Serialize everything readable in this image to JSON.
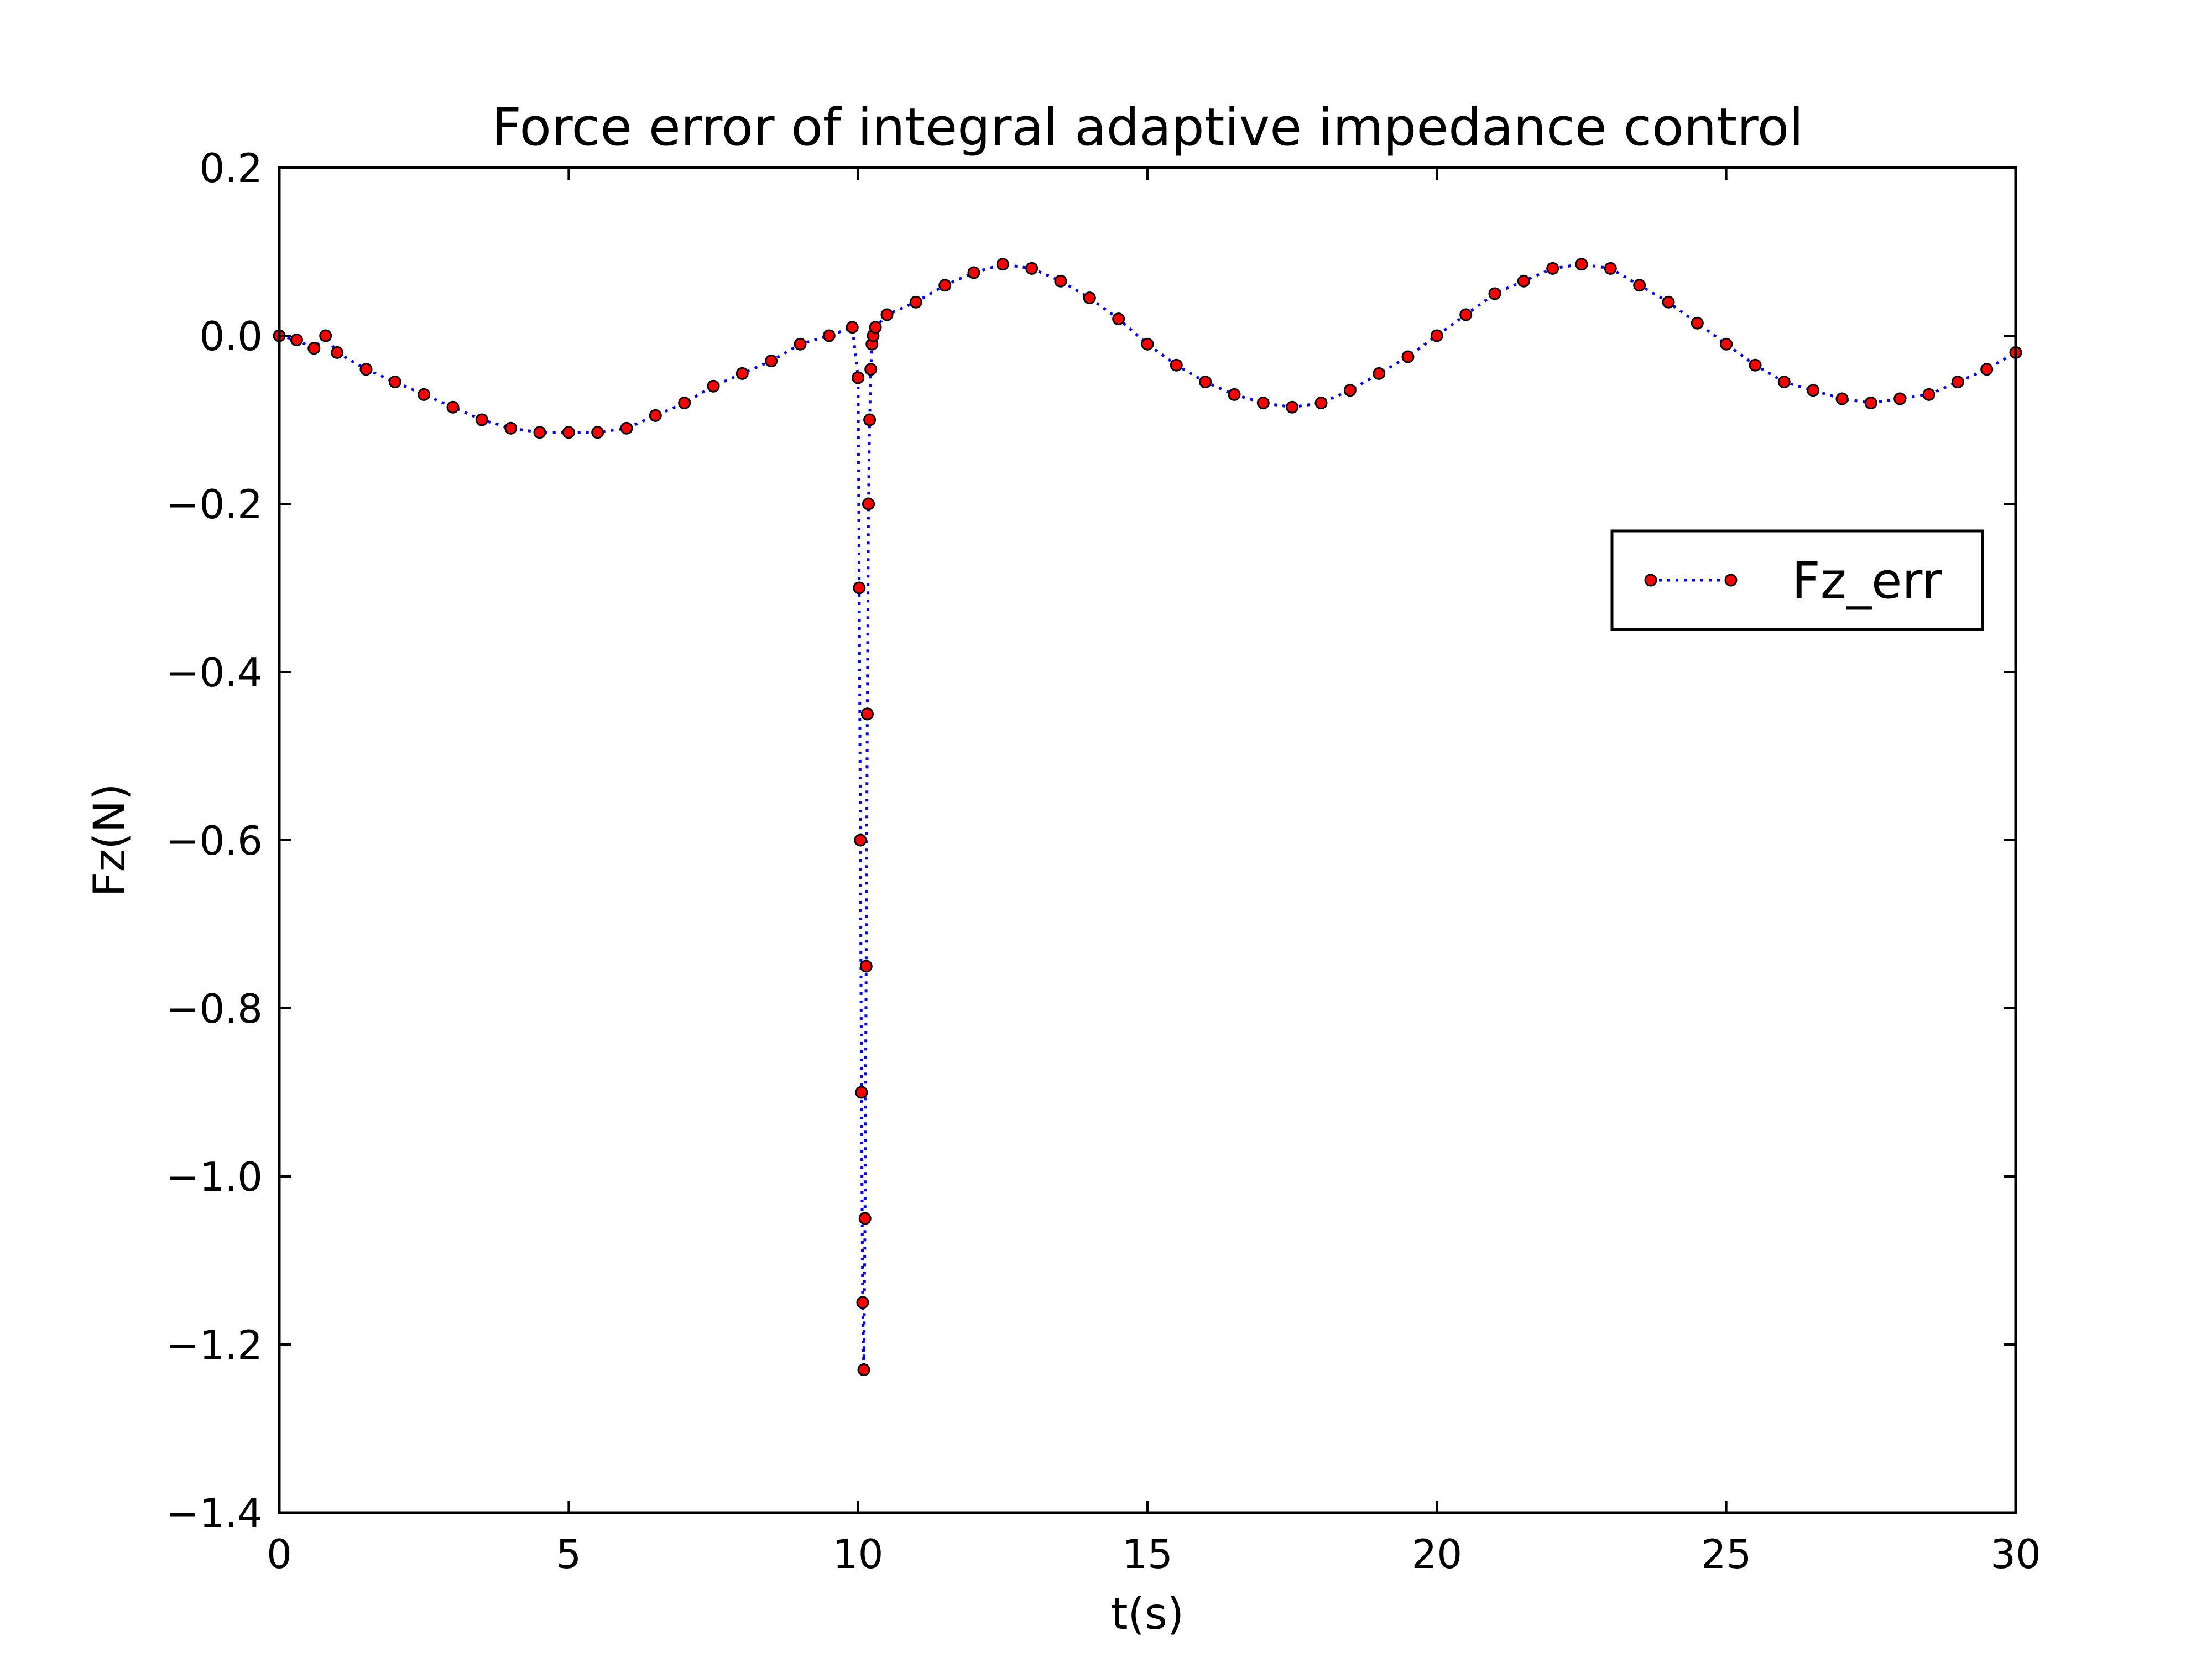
{
  "chart_data": {
    "type": "line",
    "title": "Force error of integral adaptive impedance control",
    "xlabel": "t(s)",
    "ylabel": "Fz(N)",
    "xlim": [
      0,
      30
    ],
    "ylim": [
      -1.4,
      0.2
    ],
    "xticks": [
      0,
      5,
      10,
      15,
      20,
      25,
      30
    ],
    "xtick_labels": [
      "0",
      "5",
      "10",
      "15",
      "20",
      "25",
      "30"
    ],
    "yticks": [
      0.2,
      0.0,
      -0.2,
      -0.4,
      -0.6,
      -0.8,
      -1.0,
      -1.2,
      -1.4
    ],
    "ytick_labels": [
      "0.2",
      "0.0",
      "−0.2",
      "−0.4",
      "−0.6",
      "−0.8",
      "−1.0",
      "−1.2",
      "−1.4"
    ],
    "grid": false,
    "legend": {
      "position": "right",
      "entries": [
        "Fz_err"
      ]
    },
    "series": [
      {
        "name": "Fz_err",
        "line_color": "#0000ff",
        "line_style": "dotted",
        "marker_color": "#ff0000",
        "marker_edge_color": "#000000",
        "x": [
          0.0,
          0.3,
          0.6,
          0.8,
          1.0,
          1.5,
          2.0,
          2.5,
          3.0,
          3.5,
          4.0,
          4.5,
          5.0,
          5.5,
          6.0,
          6.5,
          7.0,
          7.5,
          8.0,
          8.5,
          9.0,
          9.5,
          9.9,
          10.0,
          10.02,
          10.04,
          10.06,
          10.08,
          10.1,
          10.12,
          10.14,
          10.16,
          10.18,
          10.2,
          10.22,
          10.24,
          10.26,
          10.3,
          10.5,
          11.0,
          11.5,
          12.0,
          12.5,
          13.0,
          13.5,
          14.0,
          14.5,
          15.0,
          15.5,
          16.0,
          16.5,
          17.0,
          17.5,
          18.0,
          18.5,
          19.0,
          19.5,
          20.0,
          20.5,
          21.0,
          21.5,
          22.0,
          22.5,
          23.0,
          23.5,
          24.0,
          24.5,
          25.0,
          25.5,
          26.0,
          26.5,
          27.0,
          27.5,
          28.0,
          28.5,
          29.0,
          29.5,
          30.0
        ],
        "y": [
          0.0,
          -0.005,
          -0.015,
          0.0,
          -0.02,
          -0.04,
          -0.055,
          -0.07,
          -0.085,
          -0.1,
          -0.11,
          -0.115,
          -0.115,
          -0.115,
          -0.11,
          -0.095,
          -0.08,
          -0.06,
          -0.045,
          -0.03,
          -0.01,
          0.0,
          0.01,
          -0.05,
          -0.3,
          -0.6,
          -0.9,
          -1.15,
          -1.23,
          -1.05,
          -0.75,
          -0.45,
          -0.2,
          -0.1,
          -0.04,
          -0.01,
          0.0,
          0.01,
          0.025,
          0.04,
          0.06,
          0.075,
          0.085,
          0.08,
          0.065,
          0.045,
          0.02,
          -0.01,
          -0.035,
          -0.055,
          -0.07,
          -0.08,
          -0.085,
          -0.08,
          -0.065,
          -0.045,
          -0.025,
          0.0,
          0.025,
          0.05,
          0.065,
          0.08,
          0.085,
          0.08,
          0.06,
          0.04,
          0.015,
          -0.01,
          -0.035,
          -0.055,
          -0.065,
          -0.075,
          -0.08,
          -0.075,
          -0.07,
          -0.055,
          -0.04,
          -0.02
        ]
      }
    ]
  }
}
